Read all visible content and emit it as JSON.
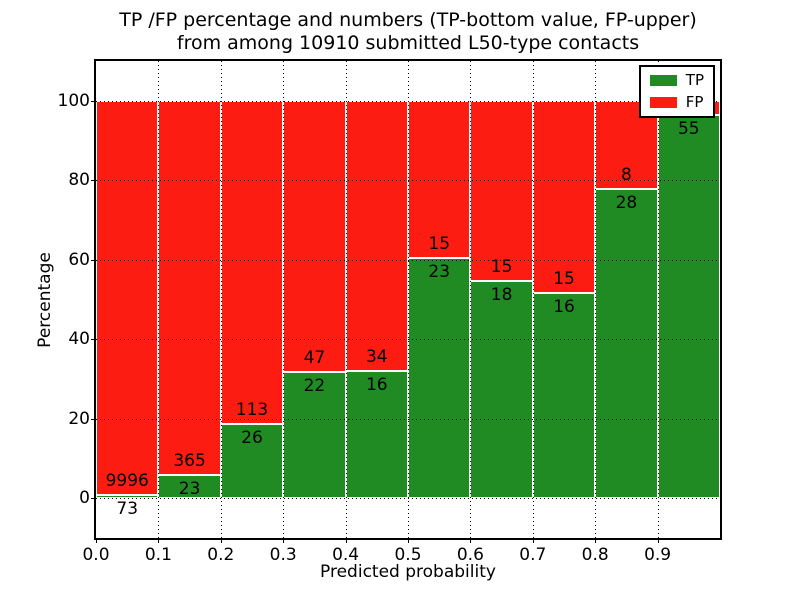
{
  "title": {
    "line1": "TP /FP percentage and numbers (TP-bottom value, FP-upper)",
    "line2": "from among 10910 submitted L50-type contacts"
  },
  "axes": {
    "xlabel": "Predicted probability",
    "ylabel": "Percentage",
    "xtick_labels": [
      "0.0",
      "0.1",
      "0.2",
      "0.3",
      "0.4",
      "0.5",
      "0.6",
      "0.7",
      "0.8",
      "0.9"
    ],
    "ytick_labels": [
      "0",
      "20",
      "40",
      "60",
      "80",
      "100"
    ],
    "ytick_values": [
      0,
      20,
      40,
      60,
      80,
      100
    ],
    "xlim": [
      0.0,
      1.0
    ],
    "ylim": [
      -10,
      110
    ],
    "grid_style": "dotted"
  },
  "legend": {
    "position": "upper-right",
    "items": [
      {
        "label": "TP",
        "color": "#208b22"
      },
      {
        "label": "FP",
        "color": "#fc1c11"
      }
    ]
  },
  "colors": {
    "tp": "#208b22",
    "fp": "#fc1c11",
    "bar_edge": "#ffffff",
    "grid": "#000000",
    "text": "#000000",
    "background": "#ffffff"
  },
  "chart_data": {
    "type": "bar",
    "stacked": true,
    "normalized_to_percent": true,
    "title": "TP /FP percentage and numbers (TP-bottom value, FP-upper) from among 10910 submitted L50-type contacts",
    "xlabel": "Predicted probability",
    "ylabel": "Percentage",
    "bin_width": 0.1,
    "bin_starts": [
      0.0,
      0.1,
      0.2,
      0.3,
      0.4,
      0.5,
      0.6,
      0.7,
      0.8,
      0.9
    ],
    "series": [
      {
        "name": "TP",
        "color": "#208b22",
        "counts": [
          73,
          23,
          26,
          22,
          16,
          23,
          18,
          16,
          28,
          55
        ],
        "pct": [
          0.73,
          5.93,
          18.71,
          31.88,
          32.0,
          60.53,
          54.55,
          51.61,
          77.78,
          96.49
        ]
      },
      {
        "name": "FP",
        "color": "#fc1c11",
        "counts": [
          9996,
          365,
          113,
          47,
          34,
          15,
          15,
          15,
          8,
          null
        ],
        "pct": [
          99.27,
          94.07,
          81.29,
          68.12,
          68.0,
          39.47,
          45.45,
          48.39,
          22.22,
          3.51
        ]
      }
    ],
    "bar_count_labels": {
      "tp": [
        "73",
        "23",
        "26",
        "22",
        "16",
        "23",
        "18",
        "16",
        "28",
        "55"
      ],
      "fp": [
        "9996",
        "365",
        "113",
        "47",
        "34",
        "15",
        "15",
        "15",
        "8",
        null
      ]
    },
    "legend_position": "upper-right",
    "grid": true
  }
}
